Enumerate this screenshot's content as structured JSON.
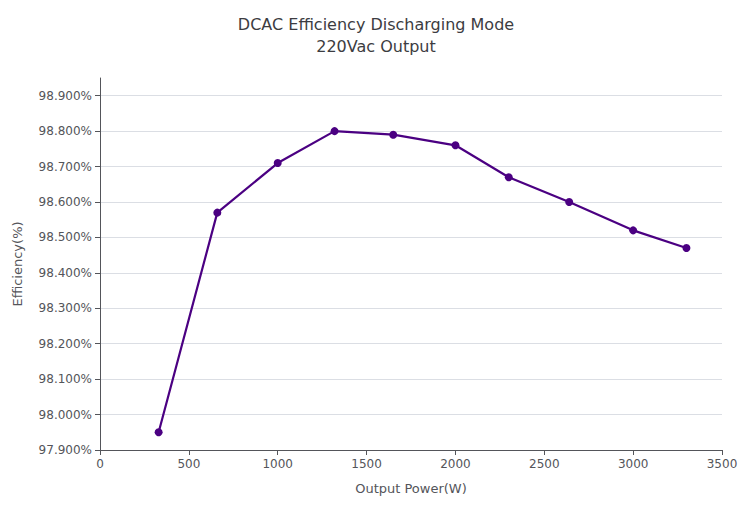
{
  "chart_data": {
    "type": "line",
    "title": "DCAC Efficiency Discharging Mode\n220Vac Output",
    "xlabel": "Output Power(W)",
    "ylabel": "Efficiency(%)",
    "x": [
      330,
      660,
      1000,
      1320,
      1650,
      2000,
      2300,
      2640,
      3000,
      3300
    ],
    "values": [
      97.95,
      98.57,
      98.71,
      98.8,
      98.79,
      98.76,
      98.67,
      98.6,
      98.52,
      98.47
    ],
    "color": "#4B0082",
    "marker": "circle",
    "xlim": [
      0,
      3500
    ],
    "xticks": [
      0,
      500,
      1000,
      1500,
      2000,
      2500,
      3000,
      3500
    ],
    "ylim": [
      97.9,
      98.95
    ],
    "yticks": [
      {
        "value": 97.9,
        "label": "97.900%"
      },
      {
        "value": 98.0,
        "label": "98.000%"
      },
      {
        "value": 98.1,
        "label": "98.100%"
      },
      {
        "value": 98.2,
        "label": "98.200%"
      },
      {
        "value": 98.3,
        "label": "98.300%"
      },
      {
        "value": 98.4,
        "label": "98.400%"
      },
      {
        "value": 98.5,
        "label": "98.500%"
      },
      {
        "value": 98.6,
        "label": "98.600%"
      },
      {
        "value": 98.7,
        "label": "98.700%"
      },
      {
        "value": 98.8,
        "label": "98.800%"
      },
      {
        "value": 98.9,
        "label": "98.900%"
      }
    ],
    "grid": true
  }
}
